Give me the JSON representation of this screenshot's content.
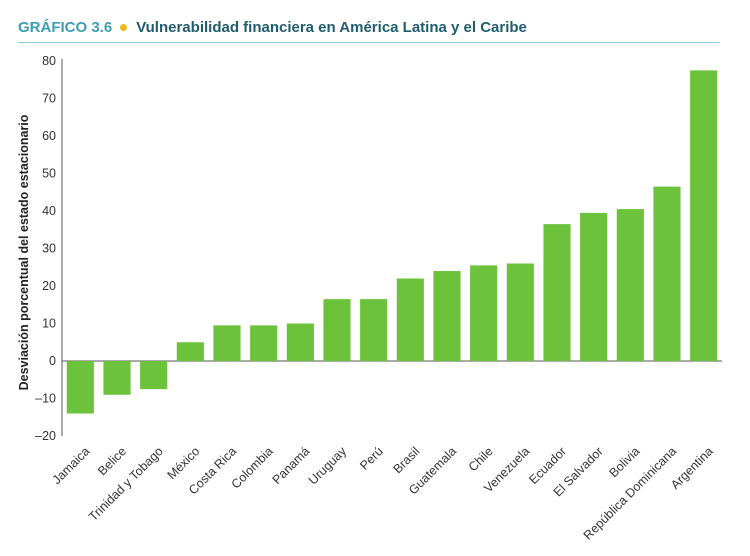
{
  "header": {
    "label": "GRÁFICO 3.6",
    "title": "Vulnerabilidad financiera en América Latina y el Caribe"
  },
  "colors": {
    "accent": "#3d9db5",
    "dot": "#f2b81c",
    "bar": "#6cc23a"
  },
  "chart_data": {
    "type": "bar",
    "title": "Vulnerabilidad financiera en América Latina y el Caribe",
    "xlabel": "",
    "ylabel": "Desviación porcentual del estado estacionario",
    "ylim": [
      -20,
      80
    ],
    "yticks": [
      "80",
      "70",
      "60",
      "50",
      "40",
      "30",
      "20",
      "10",
      "0",
      "–10",
      "–20"
    ],
    "ytick_values": [
      80,
      70,
      60,
      50,
      40,
      30,
      20,
      10,
      0,
      -10,
      -20
    ],
    "grid": false,
    "categories": [
      "Jamaica",
      "Belice",
      "Trinidad y Tobago",
      "México",
      "Costa Rica",
      "Colombia",
      "Panamá",
      "Uruguay",
      "Perú",
      "Brasil",
      "Guatemala",
      "Chile",
      "Venezuela",
      "Ecuador",
      "El Salvador",
      "Bolivia",
      "República Dominicana",
      "Argentina"
    ],
    "values": [
      -14,
      -9,
      -7.5,
      5,
      9.5,
      9.5,
      10,
      16.5,
      16.5,
      22,
      24,
      25.5,
      26,
      36.5,
      39.5,
      40.5,
      46.5,
      77.5
    ]
  }
}
